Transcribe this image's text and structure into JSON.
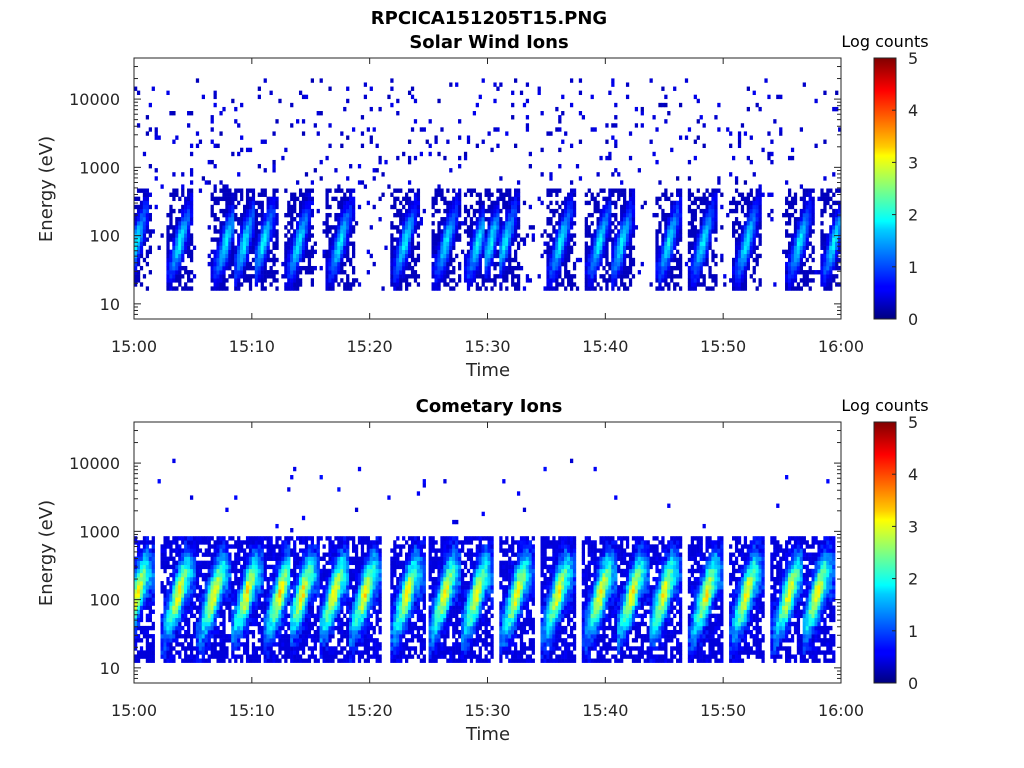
{
  "figure": {
    "title": "RPCICA151205T15.PNG"
  },
  "chart_data": [
    {
      "type": "heatmap",
      "title": "Solar Wind Ions",
      "xlabel": "Time",
      "ylabel": "Energy (eV)",
      "x_ticks": [
        "15:00",
        "15:10",
        "15:20",
        "15:30",
        "15:40",
        "15:50",
        "16:00"
      ],
      "x_range": [
        "15:00",
        "16:00"
      ],
      "y_scale": "log",
      "y_ticks": [
        "10",
        "100",
        "1000",
        "10000"
      ],
      "y_range": [
        6,
        40000
      ],
      "colorbar": {
        "label": "Log counts",
        "range": [
          0,
          5
        ],
        "ticks": [
          "0",
          "1",
          "2",
          "3",
          "4",
          "5"
        ],
        "colormap": "jet"
      },
      "bursts_minutes": [
        0.2,
        3.9,
        7.8,
        9.4,
        11.0,
        14.0,
        17.5,
        23.0,
        26.5,
        29.2,
        30.3,
        31.5,
        36.2,
        39.5,
        41.4,
        45.4,
        48.3,
        52.0,
        56.5,
        59.4
      ],
      "peak_log_counts": 1.8,
      "background": "sparse low counts (log counts ~0-0.5) across 20-20000 eV"
    },
    {
      "type": "heatmap",
      "title": "Cometary Ions",
      "xlabel": "Time",
      "ylabel": "Energy (eV)",
      "x_ticks": [
        "15:00",
        "15:10",
        "15:20",
        "15:30",
        "15:40",
        "15:50",
        "16:00"
      ],
      "x_range": [
        "15:00",
        "16:00"
      ],
      "y_scale": "log",
      "y_ticks": [
        "10",
        "100",
        "1000",
        "10000"
      ],
      "y_range": [
        6,
        40000
      ],
      "colorbar": {
        "label": "Log counts",
        "range": [
          0,
          5
        ],
        "ticks": [
          "0",
          "1",
          "2",
          "3",
          "4",
          "5"
        ],
        "colormap": "jet"
      },
      "bursts_minutes": [
        0.3,
        3.8,
        6.8,
        9.6,
        12.4,
        14.3,
        17.0,
        19.6,
        23.2,
        26.4,
        29.1,
        32.5,
        36.0,
        39.6,
        42.3,
        45.0,
        48.6,
        52.0,
        55.6,
        58.0
      ],
      "peak_log_counts": 3.0,
      "background": "isolated high-energy counts above 1000 eV"
    }
  ]
}
